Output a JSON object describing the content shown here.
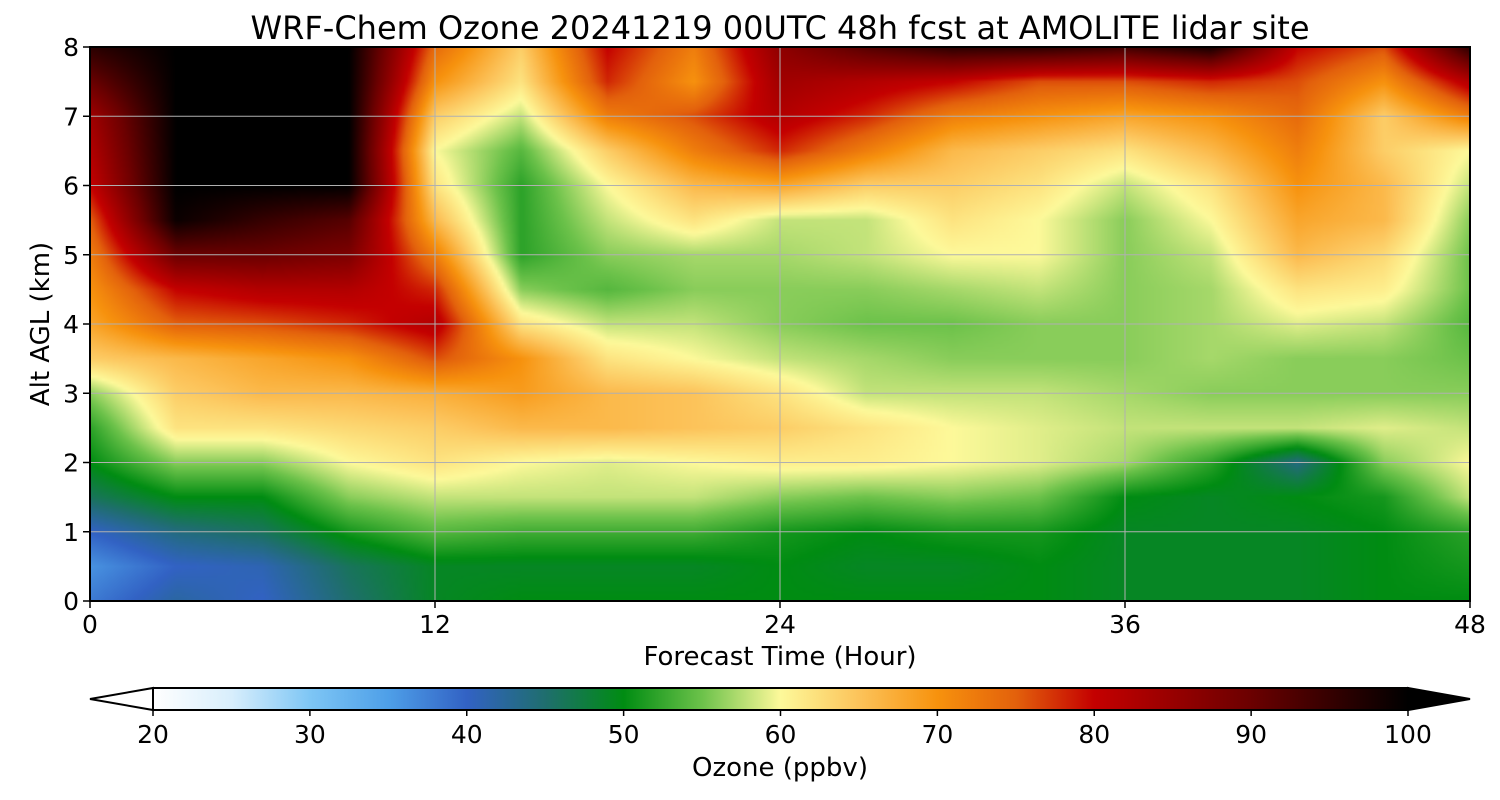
{
  "chart_data": {
    "type": "heatmap",
    "title": "WRF-Chem Ozone  20241219 00UTC 48h fcst at AMOLITE lidar site",
    "xlabel": "Forecast Time (Hour)",
    "ylabel": "Alt AGL (km)",
    "xlim": [
      0,
      48
    ],
    "ylim": [
      0,
      8
    ],
    "xticks": [
      "0",
      "12",
      "24",
      "36",
      "48"
    ],
    "yticks": [
      "0",
      "1",
      "2",
      "3",
      "4",
      "5",
      "6",
      "7",
      "8"
    ],
    "grid": true,
    "x": [
      0,
      3,
      6,
      9,
      12,
      15,
      18,
      21,
      24,
      27,
      30,
      33,
      36,
      39,
      42,
      45,
      48
    ],
    "y": [
      0,
      0.5,
      1,
      1.5,
      2,
      2.5,
      3,
      3.5,
      4,
      4.5,
      5,
      5.5,
      6,
      6.5,
      7,
      7.5,
      8
    ],
    "z": [
      [
        38,
        42,
        40,
        45,
        49,
        50,
        50,
        50,
        50,
        50,
        50,
        50,
        49,
        49,
        49,
        50,
        50
      ],
      [
        36,
        40,
        41,
        46,
        49,
        49,
        49,
        49,
        50,
        49,
        49,
        50,
        49,
        49,
        49,
        50,
        51
      ],
      [
        40,
        44,
        46,
        51,
        54,
        53,
        53,
        53,
        51,
        50,
        51,
        51,
        49,
        49,
        49,
        50,
        52
      ],
      [
        46,
        50,
        50,
        56,
        58,
        58,
        58,
        58,
        56,
        55,
        56,
        55,
        50,
        49,
        50,
        51,
        58
      ],
      [
        50,
        56,
        56,
        60,
        62,
        60,
        59,
        60,
        61,
        61,
        60,
        59,
        57,
        52,
        44,
        56,
        60
      ],
      [
        52,
        62,
        62,
        63,
        64,
        66,
        66,
        65,
        64,
        62,
        60,
        59,
        58,
        58,
        58,
        59,
        58
      ],
      [
        56,
        64,
        66,
        66,
        67,
        69,
        66,
        65,
        62,
        58,
        58,
        58,
        57,
        56,
        56,
        56,
        56
      ],
      [
        64,
        66,
        68,
        70,
        76,
        70,
        62,
        60,
        58,
        57,
        56,
        56,
        56,
        57,
        56,
        56,
        55
      ],
      [
        68,
        75,
        76,
        78,
        82,
        62,
        58,
        58,
        56,
        55,
        55,
        56,
        56,
        57,
        59,
        58,
        54
      ],
      [
        70,
        80,
        82,
        82,
        78,
        56,
        54,
        56,
        56,
        56,
        57,
        58,
        56,
        57,
        62,
        61,
        55
      ],
      [
        72,
        90,
        90,
        88,
        72,
        52,
        56,
        57,
        57,
        58,
        60,
        60,
        56,
        58,
        66,
        63,
        55
      ],
      [
        75,
        99,
        95,
        92,
        66,
        52,
        58,
        62,
        58,
        58,
        62,
        60,
        56,
        60,
        68,
        66,
        56
      ],
      [
        80,
        100,
        100,
        100,
        62,
        52,
        60,
        66,
        68,
        64,
        64,
        62,
        58,
        62,
        70,
        66,
        58
      ],
      [
        82,
        100,
        100,
        100,
        60,
        54,
        64,
        72,
        78,
        72,
        66,
        64,
        62,
        66,
        72,
        64,
        60
      ],
      [
        84,
        100,
        100,
        100,
        64,
        58,
        72,
        76,
        82,
        78,
        72,
        70,
        68,
        70,
        74,
        64,
        72
      ],
      [
        90,
        100,
        100,
        100,
        70,
        62,
        78,
        70,
        84,
        82,
        80,
        76,
        76,
        78,
        76,
        70,
        82
      ],
      [
        96,
        100,
        100,
        100,
        74,
        64,
        80,
        72,
        86,
        92,
        96,
        96,
        94,
        98,
        80,
        76,
        96
      ]
    ],
    "colorbar": {
      "label": "Ozone  (ppbv)",
      "min": 20,
      "max": 100,
      "ticks": [
        "20",
        "30",
        "40",
        "50",
        "60",
        "70",
        "80",
        "90",
        "100"
      ],
      "extend": "both"
    },
    "colormap": [
      [
        20,
        "#ffffff"
      ],
      [
        25,
        "#d8eefc"
      ],
      [
        30,
        "#7ec6f5"
      ],
      [
        35,
        "#4e9fe8"
      ],
      [
        40,
        "#3262c4"
      ],
      [
        45,
        "#1f6e6e"
      ],
      [
        50,
        "#008c12"
      ],
      [
        55,
        "#6cc24a"
      ],
      [
        60,
        "#fdf99a"
      ],
      [
        65,
        "#fcc35a"
      ],
      [
        70,
        "#f7920d"
      ],
      [
        75,
        "#e3610c"
      ],
      [
        80,
        "#c40000"
      ],
      [
        90,
        "#6b0000"
      ],
      [
        100,
        "#000000"
      ]
    ]
  }
}
